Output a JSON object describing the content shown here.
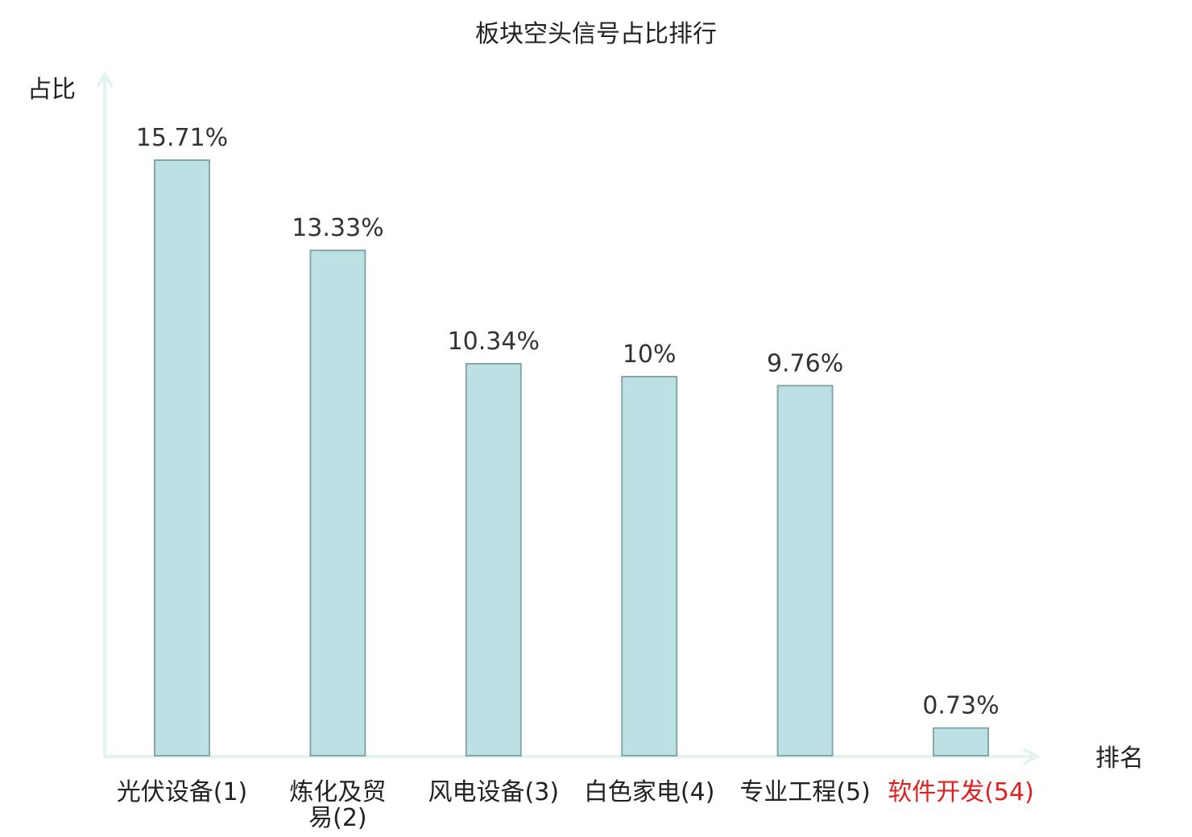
{
  "chart_data": {
    "type": "bar",
    "title": "板块空头信号占比排行",
    "ylabel": "占比",
    "xlabel": "排名",
    "categories": [
      {
        "label": "光伏设备(1)",
        "highlight": false
      },
      {
        "label": "炼化及贸易(2)",
        "highlight": false
      },
      {
        "label": "风电设备(3)",
        "highlight": false
      },
      {
        "label": "白色家电(4)",
        "highlight": false
      },
      {
        "label": "专业工程(5)",
        "highlight": false
      },
      {
        "label": "软件开发(54)",
        "highlight": true
      }
    ],
    "values": [
      15.71,
      13.33,
      10.34,
      10,
      9.76,
      0.73
    ],
    "value_labels": [
      "15.71%",
      "13.33%",
      "10.34%",
      "10%",
      "9.76%",
      "0.73%"
    ],
    "ylim": [
      0,
      15.71
    ],
    "grid": false,
    "legend": "none",
    "colors": {
      "bar_fill": "#bce0e3",
      "bar_stroke": "#87a6a8",
      "axis": "#e3f3f1",
      "text": "#222222",
      "highlight_text": "#e02020"
    }
  }
}
